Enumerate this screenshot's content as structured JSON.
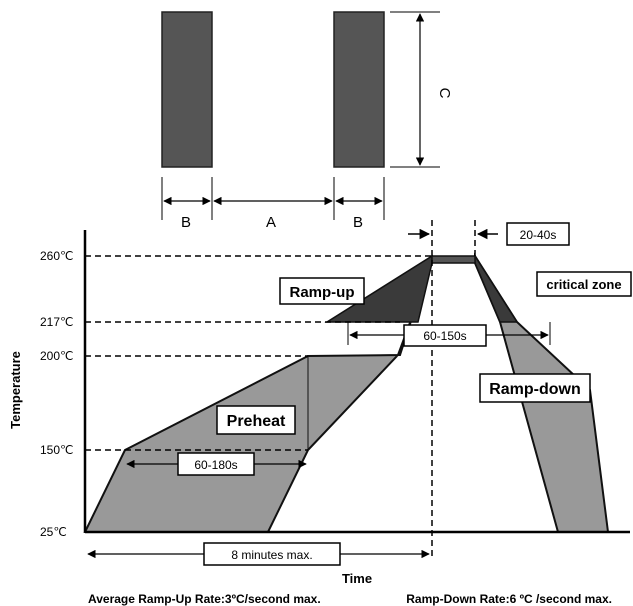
{
  "footprint": {
    "labels": {
      "b_left": "B",
      "a": "A",
      "b_right": "B",
      "c": "C"
    },
    "colors": {
      "pad": "#555555",
      "pad_border": "#222222"
    }
  },
  "profile": {
    "y_axis_label": "Temperature",
    "x_axis_label": "Time",
    "y_ticks": [
      "260℃",
      "217℃",
      "200℃",
      "150℃",
      "25℃"
    ],
    "zones": {
      "ramp_up": "Ramp-up",
      "critical": "critical zone",
      "ramp_down": "Ramp-down",
      "preheat": "Preheat"
    },
    "durations": {
      "peak": "20-40s",
      "liquidus": "60-150s",
      "preheat": "60-180s",
      "total": "8 minutes max."
    },
    "colors": {
      "band": "#999999",
      "critical": "#3a3a3a",
      "peak": "#555555",
      "outline": "#111111"
    }
  },
  "footer": {
    "ramp_up_rate": "Average Ramp-Up Rate:3ºC/second max.",
    "ramp_down_rate": "Ramp-Down Rate:6 ºC /second max."
  }
}
